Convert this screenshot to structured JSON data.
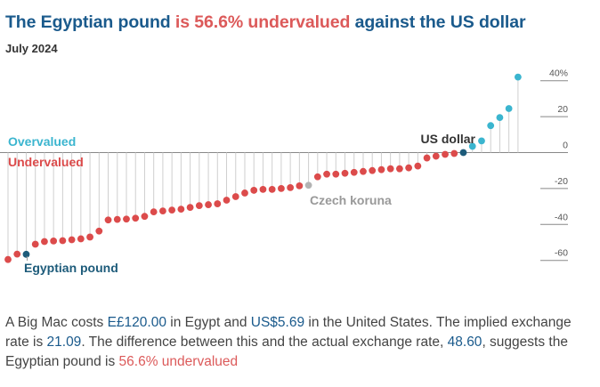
{
  "header": {
    "title_pre": "The Egyptian pound ",
    "title_highlight": "is 56.6% undervalued",
    "title_post": " against the US dollar",
    "subtitle": "July 2024"
  },
  "colors": {
    "overvalued": "#3bb5cf",
    "undervalued": "#dc4b4b",
    "highlight_dark": "#1d5b7a",
    "reference": "#b3b3b3",
    "stem": "#cfcfcf",
    "title": "#1a5a8c",
    "red_text": "#dc5a5a"
  },
  "chart_data": {
    "type": "scatter",
    "title": "The Egyptian pound is 56.6% undervalued against the US dollar",
    "subtitle": "July 2024",
    "xlabel": "",
    "ylabel": "",
    "ylim": [
      -62,
      42
    ],
    "yticks": [
      40,
      20,
      0,
      -20,
      -40,
      -60
    ],
    "ytick_labels": [
      "40%",
      "20",
      "0",
      "-20",
      "-40",
      "-60"
    ],
    "legend": {
      "overvalued_label": "Overvalued",
      "undervalued_label": "Undervalued"
    },
    "annotations": {
      "us_dollar": "US dollar",
      "czech_koruna": "Czech koruna",
      "egyptian_pound": "Egyptian pound"
    },
    "grid": false,
    "values": [
      -59.5,
      -56.5,
      -56.6,
      -51,
      -49.5,
      -49.2,
      -49,
      -48.5,
      -48,
      -47,
      -43.7,
      -37.5,
      -37.2,
      -37,
      -36.5,
      -35.5,
      -33,
      -32.5,
      -32,
      -31.5,
      -30.5,
      -29.5,
      -29,
      -28.5,
      -26.5,
      -24.5,
      -22.5,
      -21,
      -20.5,
      -20.5,
      -20,
      -19.5,
      -18.5,
      -18.2,
      -13.5,
      -12,
      -12,
      -11.5,
      -11,
      -10.5,
      -10,
      -9.5,
      -9,
      -9,
      -8.5,
      -7.5,
      -3,
      -2,
      -1,
      -0.5,
      0,
      3.5,
      6.5,
      15,
      19.5,
      24.5,
      42
    ],
    "highlights": [
      {
        "index": 2,
        "name": "Egyptian pound",
        "value": -56.6
      },
      {
        "index": 33,
        "name": "Czech koruna",
        "value": -18.2
      },
      {
        "index": 50,
        "name": "US dollar",
        "value": 0
      }
    ]
  },
  "caption": {
    "p1": "A Big Mac costs ",
    "price_egypt": "E£120.00",
    "p2": " in Egypt and ",
    "price_us": "US$5.69",
    "p3": " in the United States. The implied exchange rate is ",
    "implied_rate": "21.09",
    "p4": ". The difference between this and the actual exchange rate, ",
    "actual_rate": "48.60",
    "p5": ", suggests the Egyptian pound is ",
    "undervalued_pct": "56.6% undervalued"
  }
}
